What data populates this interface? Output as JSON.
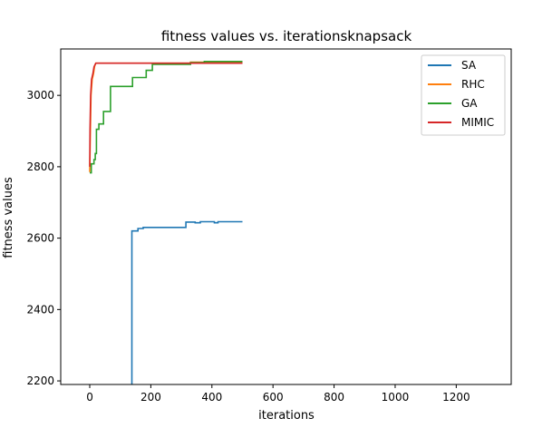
{
  "chart_data": {
    "type": "line",
    "title": "fitness values vs. iterationsknapsack",
    "xlabel": "iterations",
    "ylabel": "fitness values",
    "xlim": [
      -95,
      1380
    ],
    "ylim": [
      2190,
      3130
    ],
    "xticks": [
      0,
      200,
      400,
      600,
      800,
      1000,
      1200
    ],
    "yticks": [
      2200,
      2400,
      2600,
      2800,
      3000
    ],
    "grid": false,
    "legend": "top-right",
    "series": [
      {
        "name": "SA",
        "color": "#1f77b4",
        "points": [
          [
            138,
            2190
          ],
          [
            138,
            2620
          ],
          [
            158,
            2620
          ],
          [
            158,
            2627
          ],
          [
            175,
            2627
          ],
          [
            175,
            2630
          ],
          [
            315,
            2630
          ],
          [
            315,
            2645
          ],
          [
            345,
            2645
          ],
          [
            345,
            2643
          ],
          [
            362,
            2643
          ],
          [
            362,
            2646
          ],
          [
            408,
            2646
          ],
          [
            408,
            2643
          ],
          [
            420,
            2643
          ],
          [
            420,
            2646
          ],
          [
            500,
            2646
          ]
        ]
      },
      {
        "name": "RHC",
        "color": "#ff7f0e",
        "points": [
          [
            0,
            2785
          ],
          [
            2,
            2900
          ],
          [
            4,
            3000
          ],
          [
            8,
            3045
          ],
          [
            12,
            3060
          ],
          [
            16,
            3082
          ],
          [
            20,
            3090
          ],
          [
            330,
            3090
          ],
          [
            330,
            3093
          ],
          [
            500,
            3093
          ]
        ]
      },
      {
        "name": "GA",
        "color": "#2ca02c",
        "points": [
          [
            0,
            2783
          ],
          [
            5,
            2783
          ],
          [
            5,
            2808
          ],
          [
            14,
            2808
          ],
          [
            14,
            2820
          ],
          [
            18,
            2820
          ],
          [
            18,
            2837
          ],
          [
            22,
            2837
          ],
          [
            22,
            2905
          ],
          [
            30,
            2905
          ],
          [
            30,
            2920
          ],
          [
            45,
            2920
          ],
          [
            45,
            2955
          ],
          [
            68,
            2955
          ],
          [
            68,
            3025
          ],
          [
            140,
            3025
          ],
          [
            140,
            3050
          ],
          [
            185,
            3050
          ],
          [
            185,
            3070
          ],
          [
            205,
            3070
          ],
          [
            205,
            3087
          ],
          [
            330,
            3087
          ],
          [
            330,
            3092
          ],
          [
            375,
            3092
          ],
          [
            375,
            3095
          ],
          [
            500,
            3095
          ]
        ]
      },
      {
        "name": "MIMIC",
        "color": "#d62728",
        "points": [
          [
            0,
            2800
          ],
          [
            1,
            2905
          ],
          [
            3,
            3000
          ],
          [
            6,
            3045
          ],
          [
            10,
            3060
          ],
          [
            14,
            3080
          ],
          [
            20,
            3090
          ],
          [
            500,
            3090
          ]
        ]
      }
    ]
  }
}
